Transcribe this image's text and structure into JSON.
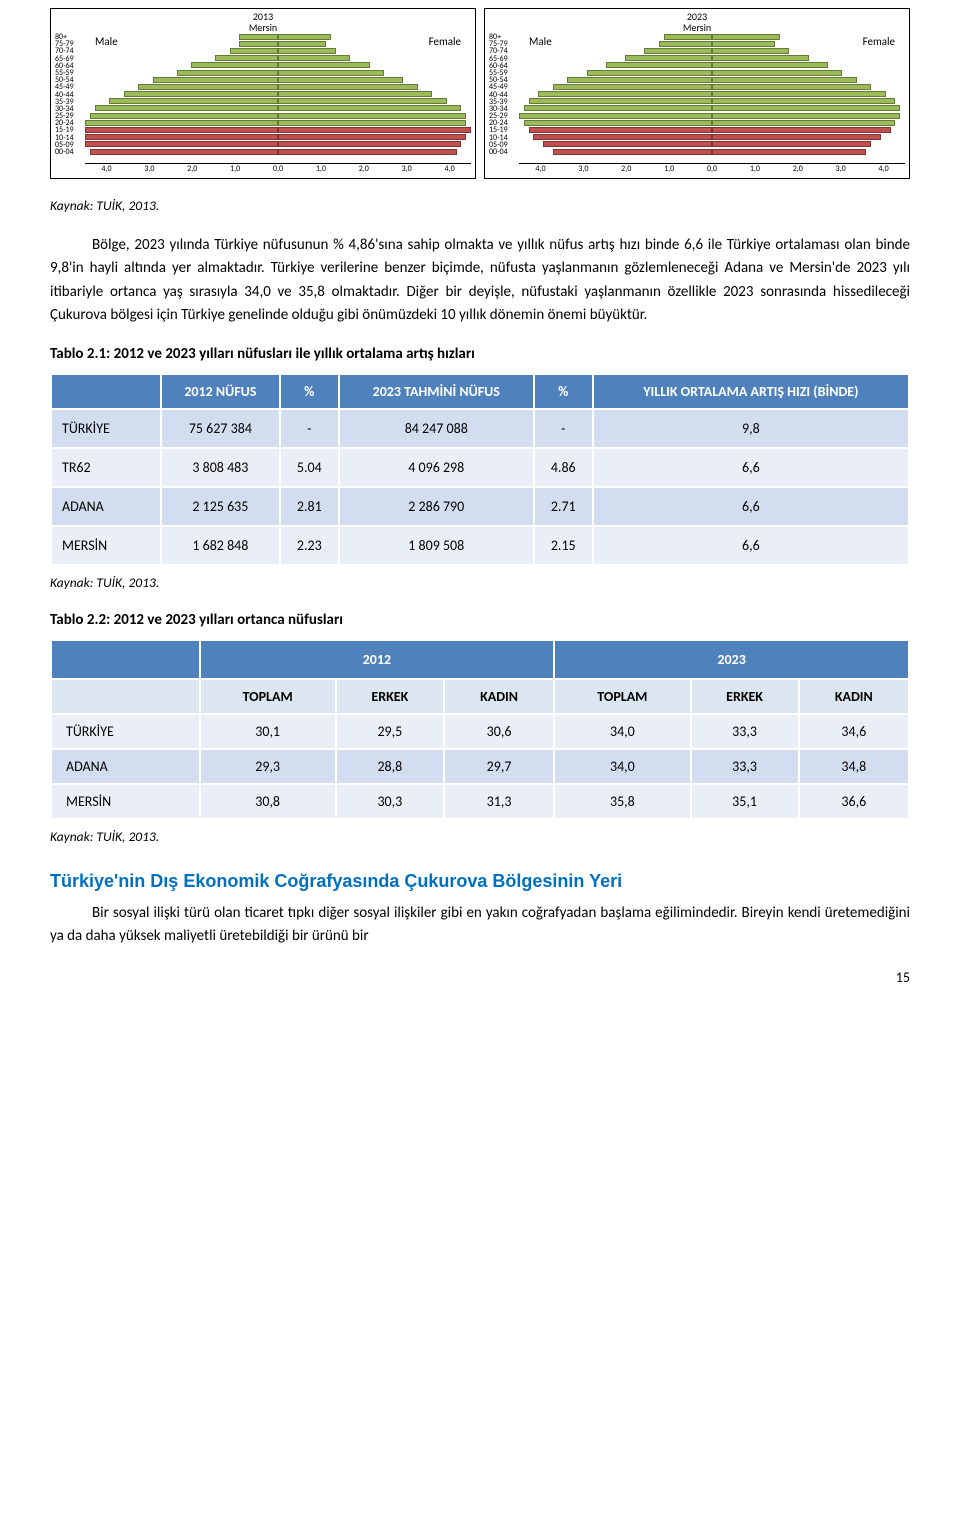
{
  "pyramids": {
    "title_2013": "2013",
    "title_2023": "2023",
    "subtitle": "Mersin",
    "male_label": "Male",
    "female_label": "Female",
    "age_groups": [
      "80+",
      "75-79",
      "70-74",
      "65-69",
      "60-64",
      "55-59",
      "50-54",
      "45-49",
      "40-44",
      "35-39",
      "30-34",
      "25-29",
      "20-24",
      "15-19",
      "10-14",
      "05-09",
      "00-04"
    ],
    "x_ticks": [
      "4,0",
      "3,0",
      "2,0",
      "1,0",
      "0,0",
      "1,0",
      "2,0",
      "3,0",
      "4,0"
    ],
    "bar_colors": {
      "young": "#c0504d",
      "mid": "#9bbb59"
    },
    "border_color": "#000000",
    "p2013": {
      "male": [
        0.8,
        0.8,
        1.0,
        1.3,
        1.8,
        2.1,
        2.6,
        2.9,
        3.2,
        3.5,
        3.8,
        3.9,
        4.0,
        4.1,
        4.1,
        4.0,
        3.9
      ],
      "female": [
        1.1,
        1.0,
        1.2,
        1.5,
        1.9,
        2.2,
        2.6,
        2.9,
        3.2,
        3.5,
        3.8,
        3.9,
        3.9,
        4.0,
        3.9,
        3.8,
        3.7
      ]
    },
    "p2023": {
      "male": [
        1.0,
        1.1,
        1.4,
        1.8,
        2.2,
        2.6,
        3.0,
        3.3,
        3.6,
        3.8,
        3.9,
        4.0,
        3.9,
        3.8,
        3.7,
        3.5,
        3.3
      ],
      "female": [
        1.4,
        1.3,
        1.6,
        2.0,
        2.4,
        2.7,
        3.0,
        3.3,
        3.6,
        3.8,
        3.9,
        3.9,
        3.8,
        3.7,
        3.5,
        3.3,
        3.2
      ]
    },
    "split_index": 13
  },
  "captions": {
    "source": "Kaynak: TUİK, 2013."
  },
  "paragraphs": {
    "p1": "Bölge, 2023 yılında Türkiye nüfusunun % 4,86'sına sahip olmakta ve yıllık nüfus artış hızı binde 6,6 ile Türkiye ortalaması olan binde 9,8'in hayli altında yer almaktadır. Türkiye verilerine benzer biçimde, nüfusta yaşlanmanın gözlemleneceği Adana ve Mersin'de 2023 yılı itibariyle ortanca yaş sırasıyla 34,0 ve 35,8 olmaktadır. Diğer bir deyişle, nüfustaki yaşlanmanın özellikle 2023 sonrasında hissedileceği Çukurova bölgesi için Türkiye genelinde olduğu gibi önümüzdeki 10 yıllık dönemin önemi büyüktür.",
    "p2": "Bir sosyal ilişki türü olan ticaret tıpkı diğer sosyal ilişkiler gibi en yakın coğrafyadan başlama eğilimindedir. Bireyin kendi üretemediğini ya da daha yüksek maliyetli üretebildiği bir ürünü bir"
  },
  "table1": {
    "title": "Tablo 2.1: 2012 ve 2023 yılları nüfusları ile yıllık ortalama artış hızları",
    "headers": [
      "",
      "2012 NÜFUS",
      "%",
      "2023 TAHMİNİ NÜFUS",
      "%",
      "YILLIK ORTALAMA ARTIŞ HIZI (BİNDE)"
    ],
    "rows": [
      {
        "label": "TÜRKİYE",
        "n2012": "75 627 384",
        "p2012": "-",
        "n2023": "84 247 088",
        "p2023": "-",
        "rate": "9,8"
      },
      {
        "label": "TR62",
        "n2012": "3 808 483",
        "p2012": "5.04",
        "n2023": "4 096 298",
        "p2023": "4.86",
        "rate": "6,6"
      },
      {
        "label": "ADANA",
        "n2012": "2 125 635",
        "p2012": "2.81",
        "n2023": "2 286 790",
        "p2023": "2.71",
        "rate": "6,6"
      },
      {
        "label": "MERSİN",
        "n2012": "1 682 848",
        "p2012": "2.23",
        "n2023": "1 809 508",
        "p2023": "2.15",
        "rate": "6,6"
      }
    ]
  },
  "table2": {
    "title": "Tablo 2.2: 2012 ve 2023 yılları ortanca nüfusları",
    "top_headers": [
      "",
      "2012",
      "2023"
    ],
    "sub_headers": [
      "",
      "TOPLAM",
      "ERKEK",
      "KADIN",
      "TOPLAM",
      "ERKEK",
      "KADIN"
    ],
    "rows": [
      {
        "label": "TÜRKİYE",
        "v": [
          "30,1",
          "29,5",
          "30,6",
          "34,0",
          "33,3",
          "34,6"
        ]
      },
      {
        "label": "ADANA",
        "v": [
          "29,3",
          "28,8",
          "29,7",
          "34,0",
          "33,3",
          "34,8"
        ]
      },
      {
        "label": "MERSİN",
        "v": [
          "30,8",
          "30,3",
          "31,3",
          "35,8",
          "35,1",
          "36,6"
        ]
      }
    ]
  },
  "section_heading": "Türkiye'nin Dış Ekonomik Coğrafyasında Çukurova Bölgesinin Yeri",
  "page_number": "15"
}
